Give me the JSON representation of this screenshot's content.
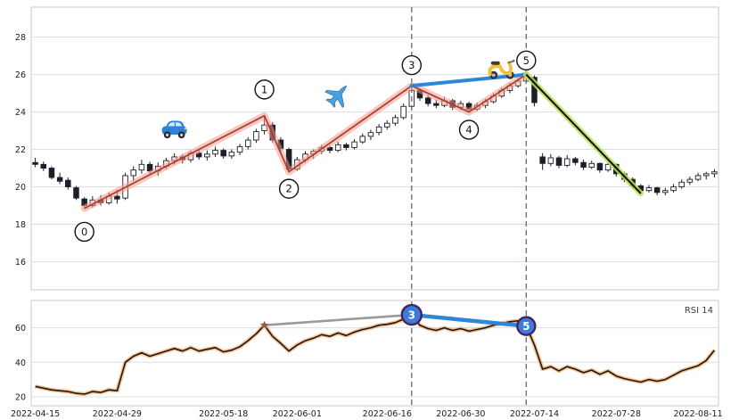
{
  "chart_data": {
    "type": "candlestick",
    "title": "",
    "price_axis": {
      "ticks": [
        16,
        18,
        20,
        22,
        24,
        26,
        28
      ],
      "range": [
        14.5,
        29.6
      ]
    },
    "rsi_axis": {
      "label": "RSI 14",
      "ticks": [
        20,
        40,
        60
      ],
      "range": [
        14.8,
        75.8
      ]
    },
    "x_ticks": [
      "2022-04-15",
      "2022-04-29",
      "2022-05-18",
      "2022-06-01",
      "2022-06-16",
      "2022-06-30",
      "2022-07-14",
      "2022-07-28",
      "2022-08-11"
    ],
    "candle_format": [
      "date",
      "open",
      "high",
      "low",
      "close"
    ],
    "candles": [
      [
        "2022-04-15",
        21.3,
        21.55,
        21.05,
        21.2
      ],
      [
        "2022-04-18",
        21.2,
        21.35,
        20.85,
        21.0
      ],
      [
        "2022-04-19",
        21.0,
        21.1,
        20.4,
        20.5
      ],
      [
        "2022-04-20",
        20.5,
        20.75,
        20.15,
        20.3
      ],
      [
        "2022-04-21",
        20.35,
        20.5,
        19.85,
        20.0
      ],
      [
        "2022-04-22",
        19.95,
        20.05,
        19.3,
        19.4
      ],
      [
        "2022-04-25",
        19.35,
        19.45,
        18.85,
        19.0
      ],
      [
        "2022-04-26",
        19.0,
        19.5,
        18.9,
        19.3
      ],
      [
        "2022-04-27",
        19.3,
        19.55,
        19.0,
        19.15
      ],
      [
        "2022-04-28",
        19.15,
        19.7,
        19.05,
        19.5
      ],
      [
        "2022-04-29",
        19.5,
        19.85,
        19.1,
        19.35
      ],
      [
        "2022-05-02",
        19.4,
        20.75,
        19.3,
        20.6
      ],
      [
        "2022-05-03",
        20.6,
        21.1,
        20.3,
        20.9
      ],
      [
        "2022-05-04",
        20.9,
        21.45,
        20.7,
        21.2
      ],
      [
        "2022-05-05",
        21.2,
        21.35,
        20.7,
        20.85
      ],
      [
        "2022-05-06",
        20.85,
        21.3,
        20.6,
        21.1
      ],
      [
        "2022-05-09",
        21.1,
        21.55,
        20.95,
        21.4
      ],
      [
        "2022-05-10",
        21.4,
        21.8,
        21.2,
        21.6
      ],
      [
        "2022-05-11",
        21.6,
        21.75,
        21.25,
        21.45
      ],
      [
        "2022-05-12",
        21.45,
        21.95,
        21.3,
        21.8
      ],
      [
        "2022-05-13",
        21.8,
        22.0,
        21.45,
        21.6
      ],
      [
        "2022-05-16",
        21.6,
        21.95,
        21.4,
        21.75
      ],
      [
        "2022-05-17",
        21.75,
        22.15,
        21.6,
        21.95
      ],
      [
        "2022-05-18",
        21.95,
        22.05,
        21.5,
        21.65
      ],
      [
        "2022-05-19",
        21.65,
        22.0,
        21.5,
        21.85
      ],
      [
        "2022-05-20",
        21.85,
        22.3,
        21.7,
        22.15
      ],
      [
        "2022-05-23",
        22.15,
        22.65,
        22.0,
        22.5
      ],
      [
        "2022-05-24",
        22.5,
        23.1,
        22.35,
        22.95
      ],
      [
        "2022-05-25",
        23.0,
        23.8,
        22.8,
        23.3
      ],
      [
        "2022-05-26",
        23.3,
        23.45,
        22.35,
        22.5
      ],
      [
        "2022-05-27",
        22.5,
        22.65,
        21.9,
        22.05
      ],
      [
        "2022-05-31",
        22.0,
        22.1,
        20.8,
        20.95
      ],
      [
        "2022-06-01",
        20.95,
        21.6,
        20.85,
        21.45
      ],
      [
        "2022-06-02",
        21.45,
        21.9,
        21.3,
        21.75
      ],
      [
        "2022-06-03",
        21.75,
        22.0,
        21.5,
        21.9
      ],
      [
        "2022-06-06",
        21.9,
        22.25,
        21.75,
        22.1
      ],
      [
        "2022-06-07",
        22.1,
        22.2,
        21.8,
        21.95
      ],
      [
        "2022-06-08",
        21.95,
        22.4,
        21.85,
        22.25
      ],
      [
        "2022-06-09",
        22.25,
        22.35,
        21.95,
        22.1
      ],
      [
        "2022-06-10",
        22.1,
        22.55,
        22.0,
        22.4
      ],
      [
        "2022-06-13",
        22.4,
        22.85,
        22.3,
        22.7
      ],
      [
        "2022-06-14",
        22.7,
        23.05,
        22.5,
        22.9
      ],
      [
        "2022-06-15",
        22.9,
        23.35,
        22.75,
        23.2
      ],
      [
        "2022-06-16",
        23.2,
        23.55,
        23.05,
        23.4
      ],
      [
        "2022-06-17",
        23.4,
        23.85,
        23.25,
        23.7
      ],
      [
        "2022-06-21",
        23.7,
        24.45,
        23.6,
        24.3
      ],
      [
        "2022-06-22",
        24.3,
        25.4,
        24.2,
        25.15
      ],
      [
        "2022-06-23",
        25.15,
        25.25,
        24.6,
        24.75
      ],
      [
        "2022-06-24",
        24.75,
        24.9,
        24.3,
        24.45
      ],
      [
        "2022-06-27",
        24.45,
        24.65,
        24.2,
        24.35
      ],
      [
        "2022-06-28",
        24.35,
        24.8,
        24.25,
        24.6
      ],
      [
        "2022-06-29",
        24.6,
        24.7,
        24.1,
        24.25
      ],
      [
        "2022-06-30",
        24.25,
        24.6,
        24.1,
        24.45
      ],
      [
        "2022-07-01",
        24.45,
        24.55,
        24.0,
        24.15
      ],
      [
        "2022-07-05",
        24.15,
        24.5,
        24.05,
        24.35
      ],
      [
        "2022-07-06",
        24.35,
        24.7,
        24.2,
        24.55
      ],
      [
        "2022-07-07",
        24.55,
        25.0,
        24.45,
        24.85
      ],
      [
        "2022-07-08",
        24.85,
        25.3,
        24.75,
        25.15
      ],
      [
        "2022-07-11",
        25.15,
        25.55,
        25.0,
        25.4
      ],
      [
        "2022-07-12",
        25.4,
        25.8,
        25.3,
        25.65
      ],
      [
        "2022-07-13",
        25.65,
        26.0,
        25.5,
        25.85
      ],
      [
        "2022-07-14",
        25.85,
        25.95,
        24.3,
        24.5
      ],
      [
        "2022-07-15",
        21.6,
        21.8,
        20.9,
        21.25
      ],
      [
        "2022-07-18",
        21.25,
        21.75,
        21.1,
        21.55
      ],
      [
        "2022-07-19",
        21.55,
        21.65,
        21.0,
        21.15
      ],
      [
        "2022-07-20",
        21.15,
        21.7,
        21.05,
        21.5
      ],
      [
        "2022-07-21",
        21.5,
        21.6,
        21.15,
        21.3
      ],
      [
        "2022-07-22",
        21.3,
        21.45,
        20.9,
        21.05
      ],
      [
        "2022-07-25",
        21.05,
        21.4,
        20.95,
        21.25
      ],
      [
        "2022-07-26",
        21.25,
        21.3,
        20.75,
        20.9
      ],
      [
        "2022-07-27",
        20.9,
        21.35,
        20.8,
        21.2
      ],
      [
        "2022-07-28",
        21.2,
        21.25,
        20.55,
        20.7
      ],
      [
        "2022-07-29",
        20.7,
        20.8,
        20.25,
        20.4
      ],
      [
        "2022-08-01",
        20.4,
        20.5,
        19.9,
        20.05
      ],
      [
        "2022-08-02",
        20.05,
        20.15,
        19.65,
        19.8
      ],
      [
        "2022-08-03",
        19.8,
        20.1,
        19.7,
        19.95
      ],
      [
        "2022-08-04",
        19.95,
        20.0,
        19.55,
        19.7
      ],
      [
        "2022-08-05",
        19.7,
        19.95,
        19.55,
        19.8
      ],
      [
        "2022-08-08",
        19.8,
        20.15,
        19.7,
        20.0
      ],
      [
        "2022-08-09",
        20.0,
        20.4,
        19.9,
        20.25
      ],
      [
        "2022-08-10",
        20.25,
        20.55,
        20.1,
        20.4
      ],
      [
        "2022-08-11",
        20.4,
        20.75,
        20.3,
        20.6
      ],
      [
        "2022-08-12",
        20.6,
        20.8,
        20.4,
        20.7
      ],
      [
        "2022-08-15",
        20.7,
        20.95,
        20.5,
        20.8
      ]
    ],
    "rsi": [
      26,
      25,
      24,
      23.5,
      23,
      22,
      21.5,
      23,
      22.5,
      24,
      23.5,
      40,
      43.5,
      45.5,
      43.5,
      45,
      46.5,
      48,
      46.5,
      48.5,
      46.5,
      47.5,
      48.5,
      46,
      47,
      49,
      52.5,
      56.5,
      61.5,
      55,
      51,
      46.5,
      50,
      52.5,
      54,
      56,
      55,
      57,
      55.5,
      57.5,
      59,
      60,
      61.5,
      62,
      63,
      65,
      67.5,
      61.5,
      59.5,
      58.5,
      60,
      58.5,
      59.5,
      58,
      59,
      60,
      61.5,
      62.5,
      63.5,
      64,
      61,
      50,
      36,
      37.5,
      35,
      37.5,
      36,
      34,
      35.5,
      33,
      35,
      32,
      30.5,
      29.5,
      28.5,
      30,
      29,
      30,
      32.5,
      35,
      36.5,
      38,
      41,
      47
    ],
    "wave_points": [
      {
        "label": "0",
        "date": "2022-04-25",
        "price": 18.85,
        "label_price": 17.6
      },
      {
        "label": "1",
        "date": "2022-05-25",
        "price": 23.8,
        "label_price": 25.2
      },
      {
        "label": "2",
        "date": "2022-05-31",
        "price": 20.8,
        "label_price": 19.9
      },
      {
        "label": "3",
        "date": "2022-06-22",
        "price": 25.4,
        "label_price": 26.5
      },
      {
        "label": "4",
        "date": "2022-07-01",
        "price": 24.0,
        "label_price": 23.05
      },
      {
        "label": "5",
        "date": "2022-07-13",
        "price": 26.0,
        "label_price": 26.75
      }
    ],
    "trend_lines": {
      "blue_line": {
        "from": {
          "date": "2022-06-22",
          "price": 25.4
        },
        "to": {
          "date": "2022-07-13",
          "price": 26.0
        }
      },
      "green_line": {
        "from": {
          "date": "2022-07-13",
          "price": 26.0
        },
        "to": {
          "date": "2022-08-02",
          "price": 19.65
        }
      }
    },
    "vlines": [
      "2022-06-22",
      "2022-07-13"
    ],
    "emojis": [
      {
        "name": "car",
        "date": "2022-05-10",
        "price": 23.0
      },
      {
        "name": "airplane",
        "date": "2022-06-08",
        "price": 24.9
      },
      {
        "name": "scooter",
        "date": "2022-07-08",
        "price": 26.35
      }
    ],
    "rsi_overlay": {
      "gray_line": {
        "from": {
          "date": "2022-05-25"
        },
        "to": {
          "date": "2022-06-22"
        }
      },
      "blue_line": {
        "from": {
          "date": "2022-06-22"
        },
        "to": {
          "date": "2022-07-13"
        }
      },
      "markers": [
        {
          "label": "3",
          "date": "2022-06-22"
        },
        {
          "label": "5",
          "date": "2022-07-13"
        }
      ]
    },
    "colors": {
      "candle_up": "#ffffff",
      "candle_down": "#1c1e2a",
      "candle_edge": "#1c1e2a",
      "wave_glow": "#f59a8b",
      "wave_core": "#a83c2e",
      "blue_line": "#2e86d6",
      "green_glow": "#b9e051",
      "green_core": "#101010",
      "rsi_glow": "#f0b27a",
      "rsi_core": "#211510",
      "gray_line": "#9a9a9a",
      "vline": "#5f6b7a",
      "grid": "#dedede",
      "panel_border": "#c8c8c8",
      "marker_fill": "#3d7bd8",
      "marker_ring": "#45245e",
      "star": "#9c5a4a",
      "tick_text": "#1a1a1a"
    }
  }
}
